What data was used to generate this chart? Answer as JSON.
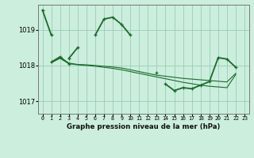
{
  "title": "Graphe pression niveau de la mer (hPa)",
  "background_color": "#cceedd",
  "grid_color": "#99ccbb",
  "line_color": "#1a6b2a",
  "x_labels": [
    "0",
    "1",
    "2",
    "3",
    "4",
    "5",
    "6",
    "7",
    "8",
    "9",
    "10",
    "11",
    "12",
    "13",
    "14",
    "15",
    "16",
    "17",
    "18",
    "19",
    "20",
    "21",
    "22",
    "23"
  ],
  "yticks": [
    1017,
    1018,
    1019
  ],
  "ylim": [
    1016.65,
    1019.7
  ],
  "xlim": [
    -0.5,
    23.5
  ],
  "series": [
    [
      1019.55,
      1018.85,
      null,
      1018.2,
      1018.5,
      null,
      1018.85,
      1019.3,
      1019.35,
      1019.15,
      1018.85,
      null,
      null,
      1017.8,
      null,
      null,
      null,
      null,
      null,
      null,
      null,
      null,
      null,
      null
    ],
    [
      null,
      1018.1,
      1018.25,
      1018.05,
      null,
      null,
      null,
      null,
      null,
      null,
      null,
      null,
      null,
      null,
      null,
      null,
      null,
      null,
      null,
      null,
      null,
      null,
      null,
      null
    ],
    [
      null,
      1018.08,
      1018.22,
      1018.07,
      1018.03,
      1018.02,
      1018.0,
      1017.98,
      1017.96,
      1017.93,
      1017.88,
      1017.83,
      1017.78,
      1017.73,
      1017.7,
      1017.67,
      1017.64,
      1017.62,
      1017.6,
      1017.58,
      1017.56,
      1017.54,
      1017.78,
      null
    ],
    [
      null,
      1018.08,
      1018.2,
      1018.05,
      1018.02,
      1018.0,
      1017.98,
      1017.95,
      1017.92,
      1017.88,
      1017.83,
      1017.78,
      1017.73,
      1017.68,
      1017.63,
      1017.58,
      1017.53,
      1017.49,
      1017.45,
      1017.42,
      1017.4,
      1017.38,
      1017.75,
      null
    ],
    [
      null,
      null,
      null,
      null,
      null,
      null,
      null,
      null,
      null,
      null,
      null,
      null,
      null,
      null,
      1017.48,
      1017.3,
      1017.38,
      1017.35,
      1017.45,
      1017.55,
      1018.22,
      1018.18,
      1017.95,
      null
    ]
  ],
  "markers": [
    true,
    true,
    false,
    false,
    true
  ],
  "linewidths": [
    1.3,
    1.0,
    0.8,
    0.8,
    1.3
  ],
  "marker_size": 3.5,
  "marker_edge_width": 0.9
}
